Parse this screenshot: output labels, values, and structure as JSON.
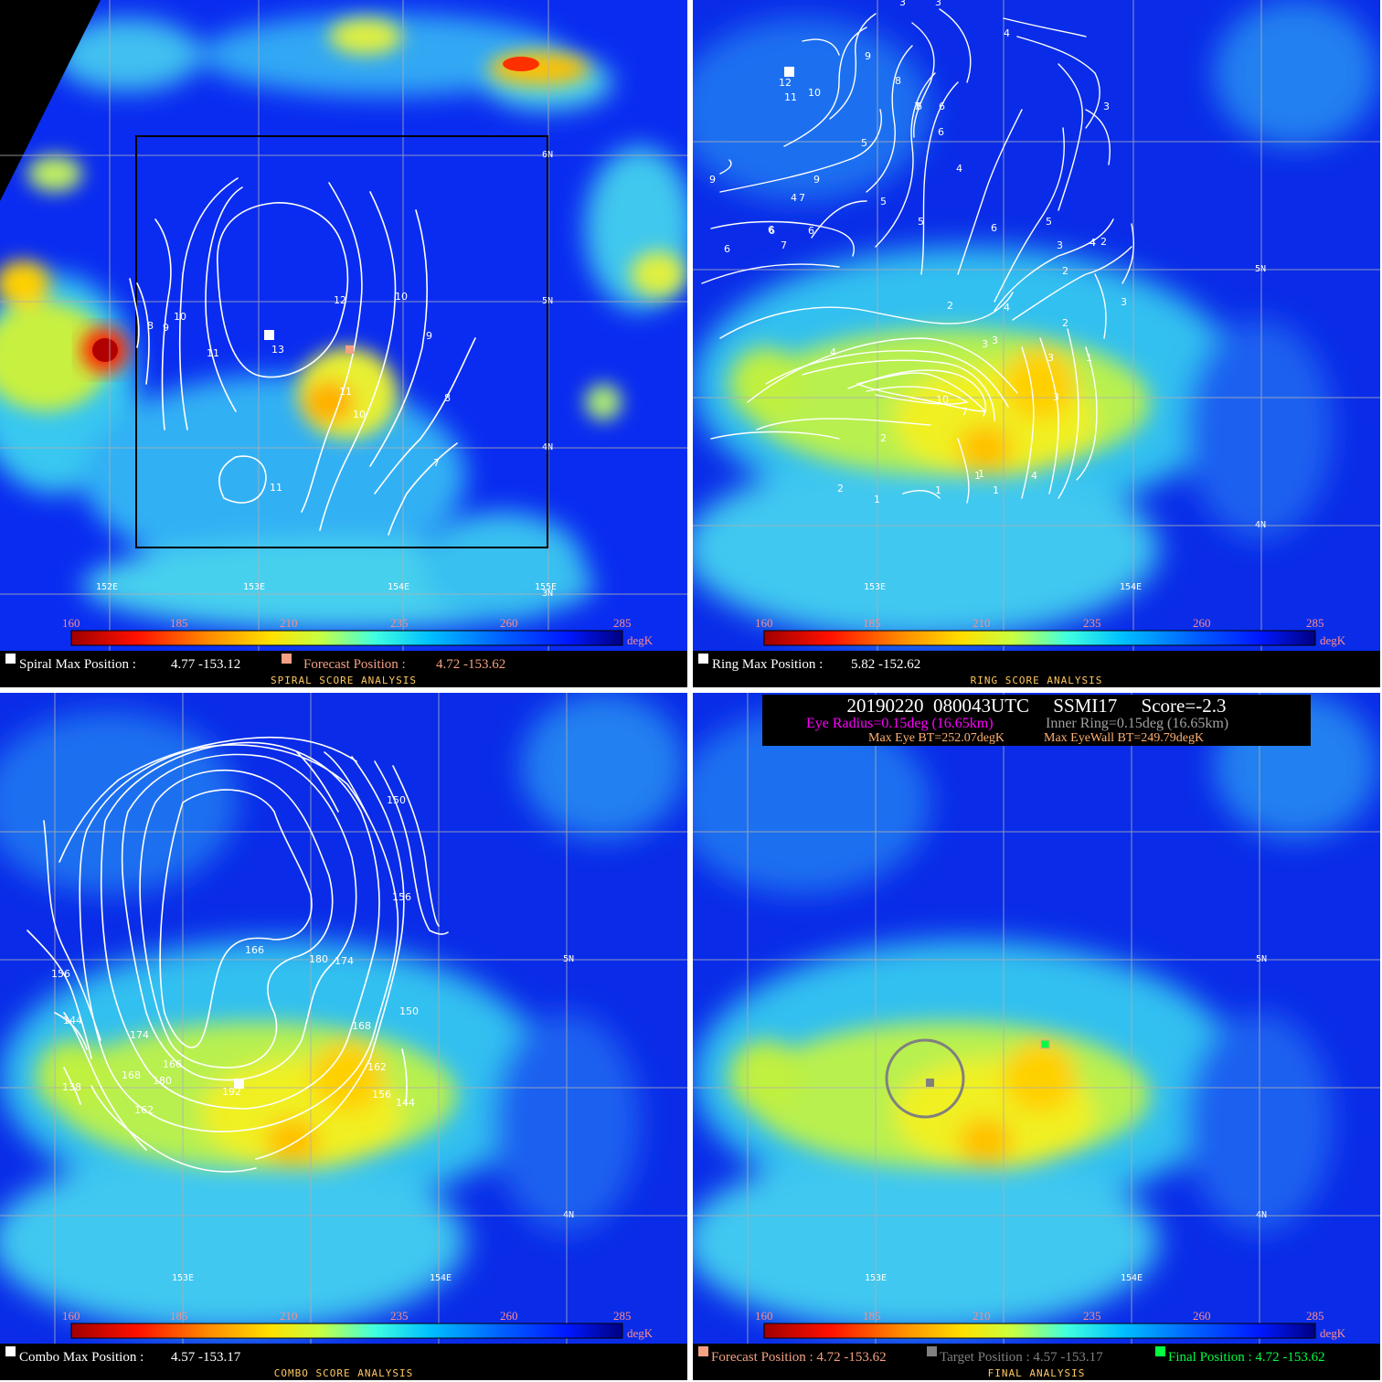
{
  "colorbar": {
    "ticks": [
      "160",
      "185",
      "210",
      "235",
      "260",
      "285"
    ],
    "unit": "degK",
    "tick_color": "#ff8c8c",
    "stops": [
      "#a00000",
      "#ff1000",
      "#ff8c00",
      "#ffe000",
      "#c8ff40",
      "#40ffe0",
      "#00c0ff",
      "#0060ff",
      "#0018ff",
      "#000080"
    ]
  },
  "panels": {
    "spiral": {
      "lon_labels": [
        "152E",
        "153E",
        "154E",
        "155E"
      ],
      "lat_labels": [
        "6N",
        "5N",
        "4N",
        "3N"
      ],
      "contour_labels": [
        "8",
        "9",
        "10",
        "11",
        "12",
        "13",
        "11",
        "10",
        "10",
        "9",
        "8",
        "7",
        "11"
      ],
      "max_label": "Spiral Max Position :",
      "max_value": "4.77 -153.12",
      "forecast_label": "Forecast Position :",
      "forecast_value": "4.72 -153.62",
      "title": "SPIRAL SCORE ANALYSIS"
    },
    "ring": {
      "lon_labels": [
        "153E",
        "154E"
      ],
      "lat_labels": [
        "5N",
        "4N"
      ],
      "contour_labels": [
        "12",
        "11",
        "10",
        "9",
        "8",
        "7",
        "6",
        "6",
        "6",
        "7",
        "6",
        "5",
        "4",
        "3",
        "3",
        "4",
        "3",
        "9",
        "9",
        "7",
        "6",
        "6",
        "6",
        "5",
        "5",
        "4",
        "4",
        "2",
        "2",
        "3",
        "3",
        "4",
        "6",
        "5",
        "4",
        "2",
        "3",
        "4",
        "3",
        "2",
        "10",
        "7",
        "3",
        "3",
        "1",
        "2",
        "2",
        "1",
        "1",
        "1",
        "4",
        "1",
        "1"
      ],
      "max_label": "Ring Max Position :",
      "max_value": "5.82 -152.62",
      "title": "RING SCORE ANALYSIS"
    },
    "combo": {
      "lon_labels": [
        "153E",
        "154E"
      ],
      "lat_labels": [
        "5N",
        "4N"
      ],
      "contour_labels": [
        "150",
        "156",
        "166",
        "180",
        "174",
        "156",
        "150",
        "144",
        "174",
        "168",
        "166",
        "180",
        "192",
        "168",
        "162",
        "156",
        "144",
        "162",
        "138"
      ],
      "max_label": "Combo Max Position :",
      "max_value": "4.57 -153.17",
      "title": "COMBO SCORE ANALYSIS"
    },
    "final": {
      "lon_labels": [
        "153E",
        "154E"
      ],
      "lat_labels": [
        "5N",
        "4N"
      ],
      "header_line1": "20190220  080043UTC     SSMI17     Score=-2.3",
      "eye_radius": "Eye Radius=0.15deg (16.65km)",
      "inner_ring": "Inner Ring=0.15deg (16.65km)",
      "max_eye_bt": "Max Eye BT=252.07degK",
      "max_eyewall_bt": "Max EyeWall BT=249.79degK",
      "forecast_label": "Forecast Position : 4.72 -153.62",
      "target_label": "Target Position : 4.57 -153.17",
      "final_label": "Final Position : 4.72 -153.62",
      "title": "FINAL ANALYSIS"
    }
  },
  "colors": {
    "forecast": "#f4a082",
    "target": "#808080",
    "final": "#00ff40",
    "eye_radius": "#ff00ff",
    "inner_ring": "#a0a0a0",
    "bt_text": "#ffb070",
    "title_text": "#ffc860"
  }
}
